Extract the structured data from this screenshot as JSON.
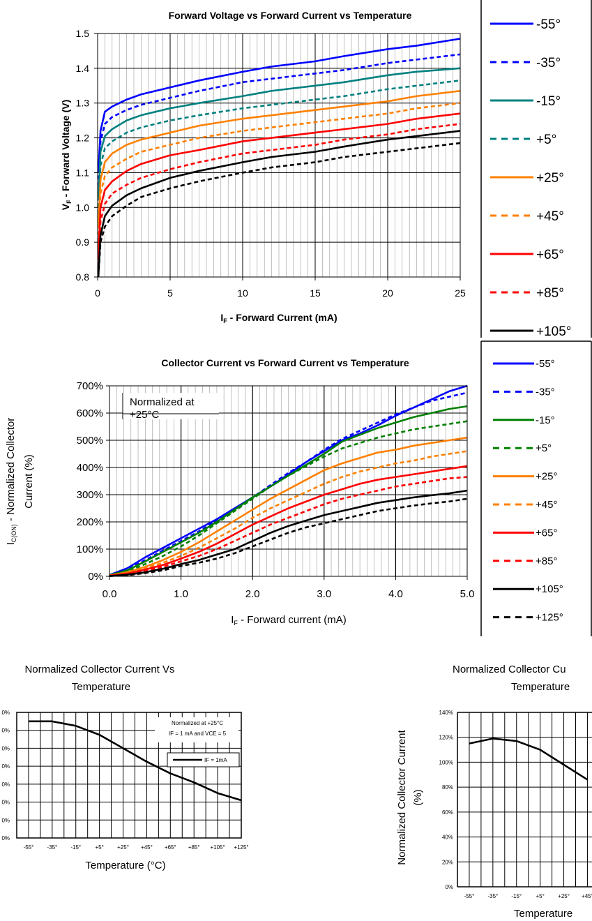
{
  "chart_data": [
    {
      "type": "line",
      "title": "Forward Voltage vs Forward Current vs Temperature",
      "xlabel_main": "I",
      "xlabel_sub": "F",
      "xlabel_rest": " - Forward Current (mA)",
      "ylabel_main": "V",
      "ylabel_sub": "F",
      "ylabel_rest": " - Forward Voltage (V)",
      "xlim": [
        0,
        25
      ],
      "ylim": [
        0.8,
        1.5
      ],
      "x_ticks": [
        "0",
        "5",
        "10",
        "15",
        "20",
        "25"
      ],
      "y_ticks": [
        "0.8",
        "0.9",
        "1.0",
        "1.1",
        "1.2",
        "1.3",
        "1.4",
        "1.5"
      ],
      "legend_position": "right",
      "x": [
        0.05,
        0.2,
        0.5,
        1,
        2,
        3,
        5,
        7,
        10,
        12,
        15,
        17,
        20,
        22,
        25
      ],
      "series": [
        {
          "name": "-55°",
          "color": "#0000ff",
          "dash": false,
          "values": [
            1.1,
            1.22,
            1.275,
            1.29,
            1.31,
            1.325,
            1.345,
            1.365,
            1.39,
            1.405,
            1.42,
            1.435,
            1.455,
            1.465,
            1.485
          ]
        },
        {
          "name": "-35°",
          "color": "#0000ff",
          "dash": true,
          "values": [
            1.06,
            1.19,
            1.24,
            1.26,
            1.28,
            1.295,
            1.315,
            1.335,
            1.36,
            1.37,
            1.385,
            1.395,
            1.415,
            1.425,
            1.44
          ]
        },
        {
          "name": "-15°",
          "color": "#008080",
          "dash": false,
          "values": [
            1.02,
            1.16,
            1.205,
            1.225,
            1.25,
            1.265,
            1.285,
            1.3,
            1.32,
            1.335,
            1.35,
            1.36,
            1.38,
            1.39,
            1.4
          ]
        },
        {
          "name": "+5°",
          "color": "#008080",
          "dash": true,
          "values": [
            0.98,
            1.12,
            1.17,
            1.19,
            1.215,
            1.23,
            1.25,
            1.265,
            1.285,
            1.295,
            1.31,
            1.32,
            1.34,
            1.35,
            1.365
          ]
        },
        {
          "name": "+25°",
          "color": "#ff8000",
          "dash": false,
          "values": [
            0.94,
            1.08,
            1.13,
            1.155,
            1.18,
            1.195,
            1.215,
            1.235,
            1.255,
            1.265,
            1.28,
            1.29,
            1.305,
            1.32,
            1.335
          ]
        },
        {
          "name": "+45°",
          "color": "#ff8000",
          "dash": true,
          "values": [
            0.9,
            1.04,
            1.09,
            1.115,
            1.14,
            1.16,
            1.18,
            1.2,
            1.22,
            1.23,
            1.245,
            1.255,
            1.27,
            1.285,
            1.3
          ]
        },
        {
          "name": "+65°",
          "color": "#ff0000",
          "dash": false,
          "values": [
            0.86,
            1.0,
            1.05,
            1.075,
            1.105,
            1.125,
            1.15,
            1.165,
            1.19,
            1.2,
            1.215,
            1.225,
            1.24,
            1.255,
            1.27
          ]
        },
        {
          "name": "+85°",
          "color": "#ff0000",
          "dash": true,
          "values": [
            0.83,
            0.96,
            1.01,
            1.04,
            1.065,
            1.085,
            1.11,
            1.13,
            1.155,
            1.165,
            1.18,
            1.195,
            1.21,
            1.225,
            1.24
          ]
        },
        {
          "name": "+105°",
          "color": "#000000",
          "dash": false,
          "values": [
            0.8,
            0.92,
            0.975,
            1.005,
            1.035,
            1.055,
            1.085,
            1.105,
            1.13,
            1.145,
            1.16,
            1.175,
            1.195,
            1.205,
            1.22
          ]
        },
        {
          "name": "",
          "color": "#000000",
          "dash": true,
          "values": [
            0.8,
            0.9,
            0.945,
            0.975,
            1.005,
            1.03,
            1.055,
            1.075,
            1.1,
            1.115,
            1.13,
            1.145,
            1.16,
            1.17,
            1.185
          ]
        }
      ]
    },
    {
      "type": "line",
      "title": "Collector Current vs Forward Current vs Temperature",
      "xlabel_main": "I",
      "xlabel_sub": "F",
      "xlabel_rest": " - Forward current (mA)",
      "ylabel_main": "I",
      "ylabel_sub": "C(ON)",
      "ylabel_rest": " - Normalized Collector",
      "ylabel_line2": "Current (%)",
      "annotation": [
        "Normalized at",
        "+25°C"
      ],
      "xlim": [
        0,
        5
      ],
      "ylim": [
        0,
        700
      ],
      "x_ticks": [
        "0.0",
        "1.0",
        "2.0",
        "3.0",
        "4.0",
        "5.0"
      ],
      "y_ticks": [
        "0%",
        "100%",
        "200%",
        "300%",
        "400%",
        "500%",
        "600%",
        "700%"
      ],
      "legend_position": "right",
      "x": [
        0.0,
        0.25,
        0.5,
        0.75,
        1.0,
        1.25,
        1.5,
        1.75,
        2.0,
        2.25,
        2.5,
        2.75,
        3.0,
        3.25,
        3.5,
        3.75,
        4.0,
        4.25,
        4.5,
        4.75,
        5.0
      ],
      "series": [
        {
          "name": "-55°",
          "color": "#0000ff",
          "dash": false,
          "values": [
            5,
            30,
            70,
            105,
            140,
            175,
            210,
            250,
            290,
            330,
            375,
            420,
            460,
            500,
            525,
            555,
            590,
            620,
            650,
            680,
            700
          ]
        },
        {
          "name": "-35°",
          "color": "#0000ff",
          "dash": true,
          "values": [
            4,
            25,
            60,
            95,
            130,
            165,
            205,
            245,
            290,
            335,
            380,
            420,
            465,
            505,
            535,
            565,
            595,
            620,
            645,
            660,
            675
          ]
        },
        {
          "name": "-15°",
          "color": "#008000",
          "dash": false,
          "values": [
            4,
            22,
            55,
            90,
            125,
            160,
            200,
            245,
            290,
            330,
            370,
            410,
            450,
            495,
            520,
            545,
            565,
            585,
            600,
            615,
            625
          ]
        },
        {
          "name": "+5°",
          "color": "#008000",
          "dash": true,
          "values": [
            3,
            18,
            45,
            75,
            110,
            150,
            195,
            240,
            285,
            330,
            370,
            405,
            440,
            470,
            490,
            510,
            525,
            540,
            550,
            560,
            570
          ]
        },
        {
          "name": "+25°",
          "color": "#ff8000",
          "dash": false,
          "values": [
            3,
            15,
            35,
            60,
            90,
            125,
            165,
            205,
            245,
            285,
            320,
            355,
            390,
            415,
            435,
            455,
            465,
            480,
            490,
            500,
            510
          ]
        },
        {
          "name": "+45°",
          "color": "#ff8000",
          "dash": true,
          "values": [
            2,
            12,
            30,
            50,
            75,
            105,
            140,
            175,
            215,
            250,
            280,
            310,
            340,
            365,
            385,
            400,
            415,
            425,
            440,
            450,
            460
          ]
        },
        {
          "name": "+65°",
          "color": "#ff0000",
          "dash": false,
          "values": [
            2,
            10,
            25,
            42,
            65,
            90,
            120,
            155,
            190,
            220,
            250,
            275,
            300,
            320,
            340,
            355,
            365,
            375,
            385,
            395,
            405
          ]
        },
        {
          "name": "+85°",
          "color": "#ff0000",
          "dash": true,
          "values": [
            2,
            8,
            20,
            35,
            55,
            75,
            100,
            130,
            160,
            190,
            215,
            240,
            265,
            285,
            300,
            315,
            330,
            340,
            350,
            360,
            365
          ]
        },
        {
          "name": "+105°",
          "color": "#000000",
          "dash": false,
          "values": [
            1,
            6,
            15,
            28,
            45,
            60,
            80,
            100,
            130,
            160,
            185,
            205,
            225,
            240,
            255,
            270,
            280,
            290,
            298,
            305,
            315
          ]
        },
        {
          "name": "+125°",
          "color": "#000000",
          "dash": true,
          "values": [
            1,
            4,
            12,
            22,
            38,
            50,
            65,
            85,
            110,
            135,
            160,
            180,
            195,
            210,
            225,
            240,
            250,
            260,
            268,
            275,
            285
          ]
        }
      ]
    },
    {
      "type": "line",
      "title": [
        "Normalized Collector Current Vs",
        "Temperature"
      ],
      "xlabel": "Temperature (°C)",
      "annotation": [
        "Normalized at +25°C",
        "IF = 1 mA and VCE = 5"
      ],
      "categories": [
        "-55°",
        "-35°",
        "-15°",
        "+5°",
        "+25°",
        "+45°",
        "+65°",
        "+85°",
        "+105°",
        "+125°"
      ],
      "ylim": [
        0,
        140
      ],
      "series": [
        {
          "name": "IF = 1mA",
          "color": "#000000",
          "values": [
            130,
            130,
            125,
            115,
            100,
            85,
            72,
            62,
            50,
            42
          ]
        }
      ]
    },
    {
      "type": "line",
      "title": [
        "Normalized Collector Cu",
        "Temperature"
      ],
      "xlabel": "Temperature",
      "ylabel": [
        "Normalized Collector Current",
        "(%)"
      ],
      "categories": [
        "-55°",
        "-35°",
        "-15°",
        "+5°",
        "+25°",
        "+45°"
      ],
      "y_ticks": [
        "0%",
        "20%",
        "40%",
        "60%",
        "80%",
        "100%",
        "120%",
        "140%"
      ],
      "ylim": [
        0,
        140
      ],
      "series": [
        {
          "name": "",
          "color": "#000000",
          "values": [
            115,
            119,
            117,
            110,
            98,
            86
          ]
        }
      ]
    }
  ]
}
